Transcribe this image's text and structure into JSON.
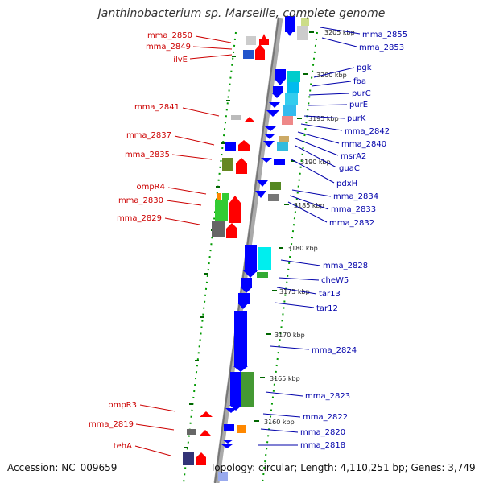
{
  "title": "Janthinobacterium sp. Marseille, complete genome",
  "footer": {
    "accession": "Accession: NC_009659",
    "topology": "Topology: circular; Length: 4,110,251 bp; Genes: 3,749"
  },
  "colors": {
    "left_label": "#cc0000",
    "right_label": "#0000aa",
    "axis": "#999999",
    "ring_dots": "#009900",
    "forward_gene": "#ff0000",
    "reverse_gene": "#0000ff"
  },
  "kbp_ticks": [
    "3205 kbp",
    "3200 kbp",
    "3195 kbp",
    "3190 kbp",
    "3185 kbp",
    "3180 kbp",
    "3175 kbp",
    "3170 kbp",
    "3165 kbp",
    "3160 kbp"
  ],
  "left_labels": [
    "mma_2850",
    "mma_2849",
    "ilvE",
    "mma_2841",
    "mma_2837",
    "mma_2835",
    "ompR4",
    "mma_2830",
    "mma_2829",
    "ompR3",
    "mma_2819",
    "tehA"
  ],
  "right_labels": [
    "mma_2855",
    "mma_2853",
    "pgk",
    "fba",
    "purC",
    "purE",
    "purK",
    "mma_2842",
    "mma_2840",
    "msrA2",
    "guaC",
    "pdxH",
    "mma_2834",
    "mma_2833",
    "mma_2832",
    "mma_2828",
    "cheW5",
    "tar13",
    "tar12",
    "mma_2824",
    "mma_2823",
    "mma_2822",
    "mma_2820",
    "mma_2818"
  ]
}
